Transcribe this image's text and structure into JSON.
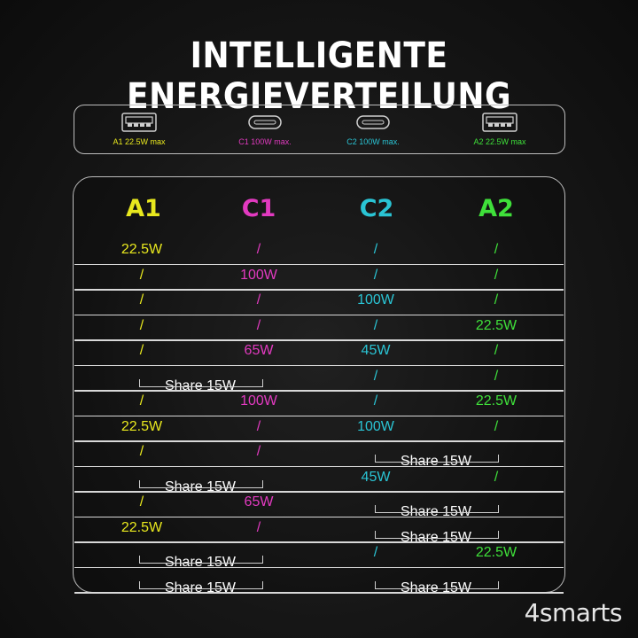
{
  "title": "INTELLIGENTE ENERGIEVERTEILUNG",
  "colors": {
    "A1": "#e8e81e",
    "C1": "#e23ac0",
    "C2": "#2ac4d4",
    "A2": "#3fe03a",
    "share": "#ffffff"
  },
  "ports": [
    {
      "id": "A1",
      "type": "usb-a-icon",
      "label": "A1 22.5W max"
    },
    {
      "id": "C1",
      "type": "usb-c-icon",
      "label": "C1 100W max."
    },
    {
      "id": "C2",
      "type": "usb-c-icon",
      "label": "C2 100W max."
    },
    {
      "id": "A2",
      "type": "usb-a-icon",
      "label": "A2 22.5W max"
    }
  ],
  "columns": [
    "A1",
    "C1",
    "C2",
    "A2"
  ],
  "rows": [
    {
      "A1": "22.5W",
      "C1": "/",
      "C2": "/",
      "A2": "/"
    },
    {
      "A1": "/",
      "C1": "100W",
      "C2": "/",
      "A2": "/"
    },
    {
      "A1": "/",
      "C1": "/",
      "C2": "100W",
      "A2": "/"
    },
    {
      "A1": "/",
      "C1": "/",
      "C2": "/",
      "A2": "22.5W"
    },
    {
      "A1": "/",
      "C1": "65W",
      "C2": "45W",
      "A2": "/"
    },
    {
      "left_share": "Share 15W",
      "C2": "/",
      "A2": "/"
    },
    {
      "A1": "/",
      "C1": "100W",
      "C2": "/",
      "A2": "22.5W"
    },
    {
      "A1": "22.5W",
      "C1": "/",
      "C2": "100W",
      "A2": "/"
    },
    {
      "A1": "/",
      "C1": "/",
      "right_share": "Share 15W"
    },
    {
      "left_share": "Share 15W",
      "C2": "45W",
      "A2": "/"
    },
    {
      "A1": "/",
      "C1": "65W",
      "right_share": "Share 15W"
    },
    {
      "A1": "22.5W",
      "C1": "/",
      "right_share": "Share 15W"
    },
    {
      "left_share": "Share 15W",
      "C2": "/",
      "A2": "22.5W"
    },
    {
      "left_share": "Share 15W",
      "right_share": "Share 15W"
    }
  ],
  "brand": "4smarts"
}
